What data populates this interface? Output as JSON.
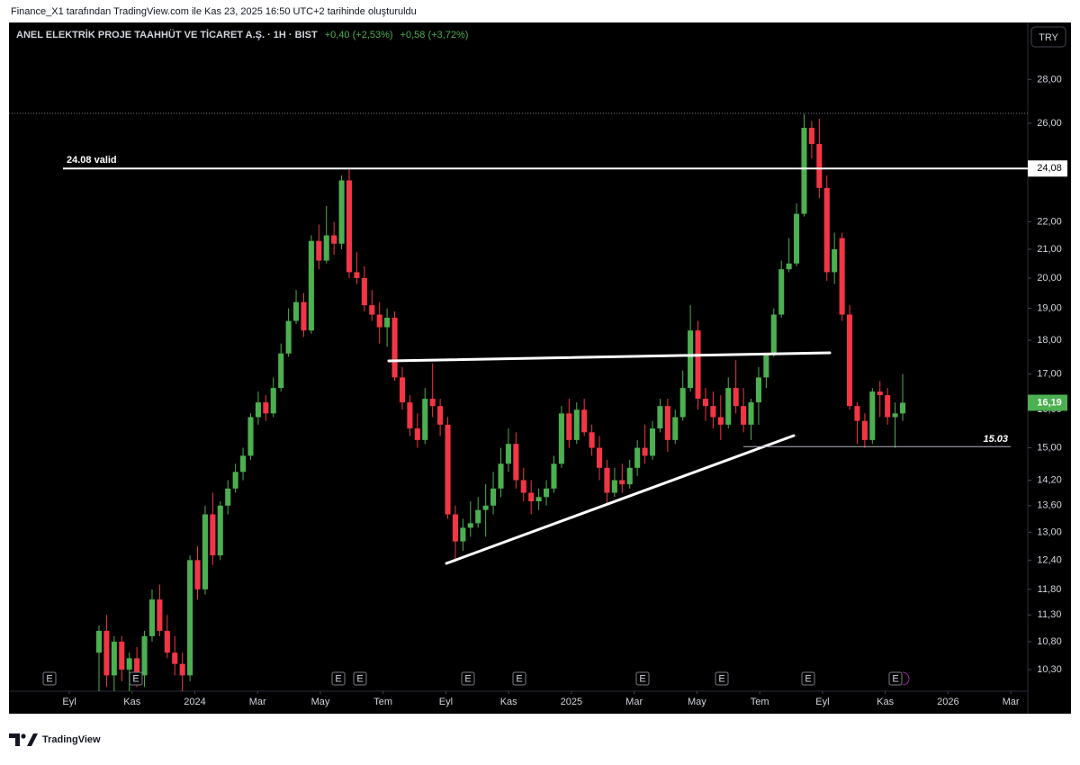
{
  "caption": "Finance_X1 tarafından TradingView.com ile Kas 23, 2025 16:50 UTC+2 tarihinde oluşturuldu",
  "brand": "TradingView",
  "chart_data": {
    "type": "candlestick",
    "title": "ANEL ELEKTRİK PROJE TAAHHÜT VE TİCARET A.Ş. · 1H · BIST",
    "changes": [
      "+0,40 (+2,53%)",
      "+0,58 (+3,72%)"
    ],
    "currency": "TRY",
    "log_scale": true,
    "up_color": "#4caf50",
    "down_color": "#f23645",
    "ylim": [
      9.93,
      30.7
    ],
    "yticks": [
      {
        "value": 28,
        "label": "28,00"
      },
      {
        "value": 26,
        "label": "26,00"
      },
      {
        "value": 22,
        "label": "22,00"
      },
      {
        "value": 21,
        "label": "21,00"
      },
      {
        "value": 20,
        "label": "20,00"
      },
      {
        "value": 19,
        "label": "19,00"
      },
      {
        "value": 18,
        "label": "18,00"
      },
      {
        "value": 17,
        "label": "17,00"
      },
      {
        "value": 16,
        "label": "16,00"
      },
      {
        "value": 15,
        "label": "15,00"
      },
      {
        "value": 14.2,
        "label": "14,20"
      },
      {
        "value": 13.6,
        "label": "13,60"
      },
      {
        "value": 13,
        "label": "13,00"
      },
      {
        "value": 12.4,
        "label": "12,40"
      },
      {
        "value": 11.8,
        "label": "11,80"
      },
      {
        "value": 11.3,
        "label": "11,30"
      },
      {
        "value": 10.8,
        "label": "10,80"
      },
      {
        "value": 10.3,
        "label": "10,30"
      }
    ],
    "xticks": [
      {
        "value": "2023-09",
        "label": "Eyl"
      },
      {
        "value": "2023-11",
        "label": "Kas"
      },
      {
        "value": "2024-01",
        "label": "2024"
      },
      {
        "value": "2024-03",
        "label": "Mar"
      },
      {
        "value": "2024-05",
        "label": "May"
      },
      {
        "value": "2024-07",
        "label": "Tem"
      },
      {
        "value": "2024-09",
        "label": "Eyl"
      },
      {
        "value": "2024-11",
        "label": "Kas"
      },
      {
        "value": "2025-01",
        "label": "2025"
      },
      {
        "value": "2025-03",
        "label": "Mar"
      },
      {
        "value": "2025-05",
        "label": "May"
      },
      {
        "value": "2025-07",
        "label": "Tem"
      },
      {
        "value": "2025-09",
        "label": "Eyl"
      },
      {
        "value": "2025-11",
        "label": "Kas"
      },
      {
        "value": "2026-01",
        "label": "2026"
      },
      {
        "value": "2026-03",
        "label": "Mar"
      }
    ],
    "levels": [
      {
        "value": 24.08,
        "label": "24,08",
        "annotation": "24.08 valid"
      },
      {
        "value": 15.03,
        "annotation": "15.03"
      }
    ],
    "last_price": {
      "value": 16.19,
      "label": "16,19"
    },
    "events": [
      "E",
      "E",
      "E",
      "E",
      "E",
      "E",
      "E",
      "E",
      "E",
      "E"
    ],
    "candles": [
      [
        10.6,
        11.1,
        9.8,
        11.0
      ],
      [
        11.0,
        11.3,
        10.0,
        10.2
      ],
      [
        10.2,
        10.9,
        9.9,
        10.8
      ],
      [
        10.8,
        10.9,
        10.1,
        10.3
      ],
      [
        10.3,
        10.6,
        9.9,
        10.5
      ],
      [
        10.5,
        10.7,
        10.0,
        10.2
      ],
      [
        10.2,
        11.0,
        10.0,
        10.9
      ],
      [
        10.9,
        11.8,
        10.8,
        11.6
      ],
      [
        11.6,
        11.9,
        10.9,
        11.0
      ],
      [
        11.0,
        11.3,
        10.5,
        10.6
      ],
      [
        10.6,
        10.9,
        10.2,
        10.4
      ],
      [
        10.4,
        10.6,
        9.9,
        10.2
      ],
      [
        10.2,
        12.5,
        10.1,
        12.4
      ],
      [
        12.4,
        12.7,
        11.6,
        11.8
      ],
      [
        11.8,
        13.6,
        11.7,
        13.4
      ],
      [
        13.4,
        13.9,
        12.3,
        12.5
      ],
      [
        12.5,
        13.7,
        12.4,
        13.6
      ],
      [
        13.6,
        14.2,
        13.4,
        14.0
      ],
      [
        14.0,
        14.6,
        13.9,
        14.4
      ],
      [
        14.4,
        15.0,
        14.2,
        14.8
      ],
      [
        14.8,
        15.9,
        14.7,
        15.8
      ],
      [
        15.8,
        16.5,
        15.6,
        16.2
      ],
      [
        16.2,
        16.4,
        15.7,
        15.9
      ],
      [
        15.9,
        16.9,
        15.8,
        16.6
      ],
      [
        16.6,
        17.9,
        16.5,
        17.6
      ],
      [
        17.6,
        19.0,
        17.5,
        18.6
      ],
      [
        18.6,
        19.6,
        18.5,
        19.2
      ],
      [
        19.2,
        19.5,
        18.1,
        18.3
      ],
      [
        18.3,
        21.5,
        18.2,
        21.3
      ],
      [
        21.3,
        21.9,
        20.3,
        20.6
      ],
      [
        20.6,
        22.6,
        20.5,
        21.5
      ],
      [
        21.5,
        22.0,
        20.8,
        21.2
      ],
      [
        21.2,
        23.8,
        21.0,
        23.6
      ],
      [
        23.6,
        24.1,
        20.0,
        20.2
      ],
      [
        20.2,
        20.9,
        19.8,
        20.0
      ],
      [
        20.0,
        20.4,
        18.9,
        19.1
      ],
      [
        19.1,
        19.6,
        18.6,
        18.8
      ],
      [
        18.8,
        19.2,
        17.9,
        18.4
      ],
      [
        18.4,
        19.0,
        17.8,
        18.7
      ],
      [
        18.7,
        18.9,
        16.8,
        16.9
      ],
      [
        16.9,
        17.2,
        16.0,
        16.2
      ],
      [
        16.2,
        16.4,
        15.3,
        15.5
      ],
      [
        15.5,
        15.9,
        15.0,
        15.2
      ],
      [
        15.2,
        16.6,
        15.1,
        16.3
      ],
      [
        16.3,
        17.3,
        15.8,
        16.1
      ],
      [
        16.1,
        16.3,
        15.3,
        15.6
      ],
      [
        15.6,
        15.8,
        13.3,
        13.4
      ],
      [
        13.4,
        13.6,
        12.4,
        12.8
      ],
      [
        12.8,
        13.3,
        12.6,
        13.1
      ],
      [
        13.1,
        13.7,
        12.9,
        13.2
      ],
      [
        13.2,
        13.8,
        13.1,
        13.5
      ],
      [
        13.5,
        14.1,
        12.9,
        13.6
      ],
      [
        13.6,
        14.4,
        13.4,
        14.0
      ],
      [
        14.0,
        15.0,
        13.8,
        14.6
      ],
      [
        14.6,
        15.5,
        14.4,
        15.1
      ],
      [
        15.1,
        15.4,
        14.0,
        14.2
      ],
      [
        14.2,
        14.5,
        13.7,
        13.9
      ],
      [
        13.9,
        14.2,
        13.4,
        13.7
      ],
      [
        13.7,
        14.0,
        13.5,
        13.8
      ],
      [
        13.8,
        14.2,
        13.6,
        14.0
      ],
      [
        14.0,
        14.8,
        13.9,
        14.6
      ],
      [
        14.6,
        16.1,
        14.5,
        15.9
      ],
      [
        15.9,
        16.3,
        15.0,
        15.2
      ],
      [
        15.2,
        16.2,
        15.1,
        16.0
      ],
      [
        16.0,
        16.3,
        15.3,
        15.4
      ],
      [
        15.4,
        15.6,
        14.8,
        15.0
      ],
      [
        15.0,
        15.3,
        14.2,
        14.5
      ],
      [
        14.5,
        14.7,
        13.6,
        13.9
      ],
      [
        13.9,
        14.5,
        13.8,
        14.2
      ],
      [
        14.2,
        14.6,
        13.9,
        14.1
      ],
      [
        14.1,
        14.7,
        14.0,
        14.5
      ],
      [
        14.5,
        15.2,
        14.3,
        15.0
      ],
      [
        15.0,
        15.6,
        14.6,
        14.8
      ],
      [
        14.8,
        15.7,
        14.7,
        15.5
      ],
      [
        15.5,
        16.3,
        15.4,
        16.1
      ],
      [
        16.1,
        16.3,
        14.9,
        15.2
      ],
      [
        15.2,
        16.0,
        15.1,
        15.8
      ],
      [
        15.8,
        17.1,
        15.7,
        16.6
      ],
      [
        16.6,
        19.1,
        16.5,
        18.3
      ],
      [
        18.3,
        18.6,
        16.0,
        16.3
      ],
      [
        16.3,
        16.6,
        15.7,
        16.1
      ],
      [
        16.1,
        16.5,
        15.5,
        15.8
      ],
      [
        15.8,
        16.4,
        15.2,
        15.6
      ],
      [
        15.6,
        16.9,
        15.5,
        16.6
      ],
      [
        16.6,
        17.4,
        15.9,
        16.1
      ],
      [
        16.1,
        16.6,
        15.4,
        15.6
      ],
      [
        15.6,
        16.3,
        15.2,
        16.2
      ],
      [
        16.2,
        17.2,
        15.6,
        16.9
      ],
      [
        16.9,
        17.6,
        16.6,
        17.6
      ],
      [
        17.6,
        19.0,
        17.5,
        18.8
      ],
      [
        18.8,
        20.6,
        18.7,
        20.3
      ],
      [
        20.3,
        21.4,
        20.2,
        20.5
      ],
      [
        20.5,
        22.7,
        20.4,
        22.3
      ],
      [
        22.3,
        26.4,
        22.2,
        25.8
      ],
      [
        25.8,
        26.1,
        24.5,
        25.1
      ],
      [
        25.1,
        26.2,
        22.9,
        23.3
      ],
      [
        23.3,
        23.8,
        19.9,
        20.2
      ],
      [
        20.2,
        21.6,
        19.8,
        21.0
      ],
      [
        21.4,
        21.6,
        18.6,
        18.8
      ],
      [
        18.8,
        19.1,
        16.0,
        16.1
      ],
      [
        16.1,
        16.2,
        15.1,
        15.7
      ],
      [
        15.7,
        15.9,
        15.0,
        15.2
      ],
      [
        15.2,
        16.6,
        15.1,
        16.5
      ],
      [
        16.5,
        16.8,
        15.8,
        16.4
      ],
      [
        16.4,
        16.6,
        15.6,
        15.8
      ],
      [
        15.8,
        16.2,
        15.0,
        15.9
      ],
      [
        15.9,
        17.0,
        15.7,
        16.19
      ]
    ]
  }
}
